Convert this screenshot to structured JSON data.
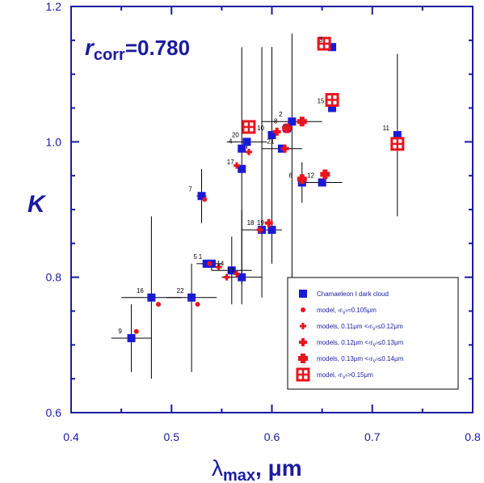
{
  "chart_data": {
    "type": "scatter",
    "xlabel": "λmax, μm",
    "xlabel_main": "λ",
    "xlabel_sub": "max",
    "xlabel_unit": ", μm",
    "ylabel": "K",
    "xlim": [
      0.4,
      0.8
    ],
    "ylim": [
      0.6,
      1.2
    ],
    "xticks": [
      0.4,
      0.5,
      0.6,
      0.7,
      0.8
    ],
    "xtick_labels": [
      "0.4",
      "0.5",
      "0.6",
      "0.7",
      "0.8"
    ],
    "yticks": [
      0.6,
      0.8,
      1.0,
      1.2
    ],
    "ytick_labels": [
      "0.6",
      "0.8",
      "1.0",
      "1.2"
    ],
    "annotation": {
      "r": "r",
      "sub": "corr",
      "value": "=0.780"
    },
    "legend_position": "bottom-right",
    "colors": {
      "axis": "#1a1aa0",
      "observed": "#1a1ad6",
      "model": "#e8141e",
      "errorbar": "#000000"
    },
    "series": [
      {
        "name": "Chamaeleon I dark cloud",
        "marker": "square",
        "points": [
          {
            "label": "1",
            "x": 0.54,
            "y": 0.82,
            "xerr": 0.01,
            "ylow": 0.81,
            "yhigh": 0.82
          },
          {
            "label": "2",
            "x": 0.62,
            "y": 1.03,
            "xerr": 0.03,
            "ylow": 0.8,
            "yhigh": 1.16
          },
          {
            "label": "3",
            "x": 0.66,
            "y": 1.14,
            "xerr": 0.0,
            "ylow": 1.14,
            "yhigh": 1.14
          },
          {
            "label": "4",
            "x": 0.57,
            "y": 0.99,
            "xerr": 0.0,
            "ylow": 0.99,
            "yhigh": 0.99
          },
          {
            "label": "5",
            "x": 0.535,
            "y": 0.82,
            "xerr": 0.01,
            "ylow": 0.82,
            "yhigh": 0.82
          },
          {
            "label": "6",
            "x": 0.63,
            "y": 0.94,
            "xerr": 0.0,
            "ylow": 0.91,
            "yhigh": 0.97
          },
          {
            "label": "7",
            "x": 0.53,
            "y": 0.92,
            "xerr": 0.005,
            "ylow": 0.88,
            "yhigh": 0.96
          },
          {
            "label": "8",
            "x": 0.615,
            "y": 1.02,
            "xerr": 0.0,
            "ylow": 1.02,
            "yhigh": 1.02
          },
          {
            "label": "9",
            "x": 0.46,
            "y": 0.71,
            "xerr": 0.02,
            "ylow": 0.66,
            "yhigh": 0.76
          },
          {
            "label": "10",
            "x": 0.6,
            "y": 1.01,
            "xerr": 0.0,
            "ylow": 0.82,
            "yhigh": 1.14
          },
          {
            "label": "11",
            "x": 0.725,
            "y": 1.01,
            "xerr": 0.0,
            "ylow": 0.89,
            "yhigh": 1.13
          },
          {
            "label": "12",
            "x": 0.65,
            "y": 0.94,
            "xerr": 0.02,
            "ylow": 0.94,
            "yhigh": 0.94
          },
          {
            "label": "13",
            "x": 0.57,
            "y": 0.8,
            "xerr": 0.02,
            "ylow": 0.76,
            "yhigh": 0.9
          },
          {
            "label": "14",
            "x": 0.56,
            "y": 0.81,
            "xerr": 0.02,
            "ylow": 0.76,
            "yhigh": 0.86
          },
          {
            "label": "15",
            "x": 0.66,
            "y": 1.05,
            "xerr": 0.0,
            "ylow": 1.05,
            "yhigh": 1.05
          },
          {
            "label": "16",
            "x": 0.48,
            "y": 0.77,
            "xerr": 0.03,
            "ylow": 0.65,
            "yhigh": 0.89
          },
          {
            "label": "17",
            "x": 0.57,
            "y": 0.96,
            "xerr": 0.0,
            "ylow": 0.79,
            "yhigh": 1.14
          },
          {
            "label": "18",
            "x": 0.59,
            "y": 0.87,
            "xerr": 0.02,
            "ylow": 0.77,
            "yhigh": 1.14
          },
          {
            "label": "19",
            "x": 0.6,
            "y": 0.87,
            "xerr": 0.0,
            "ylow": 0.87,
            "yhigh": 0.87
          },
          {
            "label": "20",
            "x": 0.575,
            "y": 1.0,
            "xerr": 0.02,
            "ylow": 0.99,
            "yhigh": 1.0
          },
          {
            "label": "21",
            "x": 0.61,
            "y": 0.99,
            "xerr": 0.02,
            "ylow": 0.99,
            "yhigh": 0.99
          },
          {
            "label": "22",
            "x": 0.52,
            "y": 0.77,
            "xerr": 0.025,
            "ylow": 0.66,
            "yhigh": 0.82
          }
        ]
      },
      {
        "name": "model, ‹rV›≈0.105μm",
        "marker": "dot",
        "points": [
          {
            "x": 0.465,
            "y": 0.72
          },
          {
            "x": 0.487,
            "y": 0.76
          },
          {
            "x": 0.526,
            "y": 0.76
          },
          {
            "x": 0.533,
            "y": 0.915
          },
          {
            "x": 0.538,
            "y": 0.82
          }
        ]
      },
      {
        "name": "models, 0.11μm ‹rV›≤0.12μm",
        "marker": "small-plus",
        "points": [
          {
            "x": 0.547,
            "y": 0.815
          },
          {
            "x": 0.555,
            "y": 0.8
          },
          {
            "x": 0.565,
            "y": 0.805
          },
          {
            "x": 0.577,
            "y": 0.985
          },
          {
            "x": 0.588,
            "y": 0.87
          },
          {
            "x": 0.565,
            "y": 0.965
          }
        ]
      },
      {
        "name": "models, 0.12μm ‹rV›≤0.13μm",
        "marker": "plus",
        "points": [
          {
            "x": 0.597,
            "y": 0.88
          },
          {
            "x": 0.605,
            "y": 1.015
          },
          {
            "x": 0.613,
            "y": 0.99
          }
        ]
      },
      {
        "name": "models, 0.13μm ‹rV›≤0.14μm",
        "marker": "bold-plus",
        "points": [
          {
            "x": 0.615,
            "y": 1.02
          },
          {
            "x": 0.63,
            "y": 1.03
          },
          {
            "x": 0.63,
            "y": 0.945
          },
          {
            "x": 0.653,
            "y": 0.952
          }
        ]
      },
      {
        "name": "model, ‹rV›>0.15μm",
        "marker": "open-square-cross",
        "points": [
          {
            "x": 0.577,
            "y": 1.022
          },
          {
            "x": 0.652,
            "y": 1.145
          },
          {
            "x": 0.66,
            "y": 1.062
          },
          {
            "x": 0.725,
            "y": 0.997
          }
        ]
      }
    ]
  },
  "legend": {
    "items": [
      {
        "marker": "square",
        "text": "Chamaeleon I dark cloud"
      },
      {
        "marker": "dot",
        "text": "model,  ‹r",
        "sub": "V",
        "tail": "›≈0.105μm"
      },
      {
        "marker": "small-plus",
        "text": "models, 0.11μm <‹r",
        "sub": "V",
        "tail": "›≤0.12μm"
      },
      {
        "marker": "plus",
        "text": "models, 0.12μm <‹r",
        "sub": "V",
        "tail": "›≤0.13μm"
      },
      {
        "marker": "bold-plus",
        "text": "models, 0.13μm <‹r",
        "sub": "V",
        "tail": "›≤0.14μm"
      },
      {
        "marker": "open-square-cross",
        "text": "model,  ‹r",
        "sub": "V",
        "tail": "›>0.15μm"
      }
    ]
  }
}
